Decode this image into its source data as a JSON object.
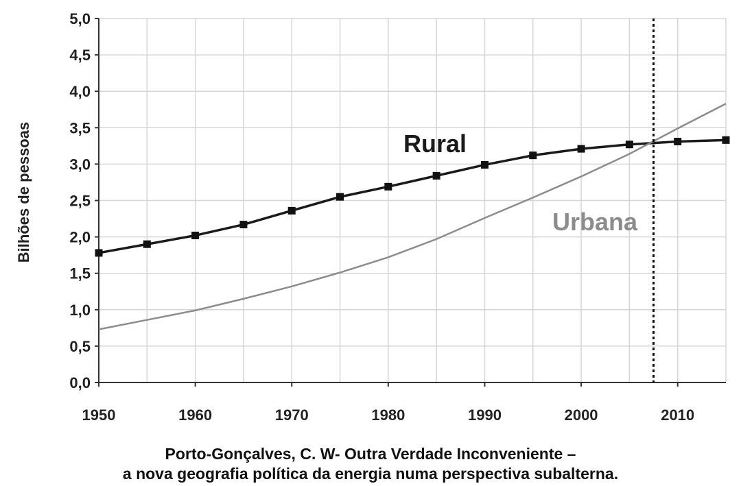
{
  "chart_data": {
    "type": "line",
    "title": "",
    "xlabel": "",
    "ylabel": "Bilhões de pessoas",
    "xlim": [
      1950,
      2015
    ],
    "ylim": [
      0,
      5
    ],
    "x_ticks": [
      1950,
      1960,
      1970,
      1980,
      1990,
      2000,
      2010
    ],
    "x_tick_labels": [
      "1950",
      "1960",
      "1970",
      "1980",
      "1990",
      "2000",
      "2010"
    ],
    "y_ticks": [
      0,
      0.5,
      1,
      1.5,
      2,
      2.5,
      3,
      3.5,
      4,
      4.5,
      5
    ],
    "y_tick_labels": [
      "0,0",
      "0,5",
      "1,0",
      "1,5",
      "2,0",
      "2,5",
      "3,0",
      "3,5",
      "4,0",
      "4,5",
      "5,0"
    ],
    "grid": true,
    "series": [
      {
        "name": "Rural",
        "color": "#1a1a1a",
        "marker": "square",
        "x": [
          1950,
          1955,
          1960,
          1965,
          1970,
          1975,
          1980,
          1985,
          1990,
          1995,
          2000,
          2005,
          2010,
          2015
        ],
        "y": [
          1.78,
          1.9,
          2.02,
          2.17,
          2.36,
          2.55,
          2.69,
          2.84,
          2.99,
          3.12,
          3.21,
          3.27,
          3.31,
          3.33
        ]
      },
      {
        "name": "Urbana",
        "color": "#8c8c8c",
        "marker": "none",
        "x": [
          1950,
          1955,
          1960,
          1965,
          1970,
          1975,
          1980,
          1985,
          1990,
          1995,
          2000,
          2005,
          2010,
          2015
        ],
        "y": [
          0.73,
          0.86,
          0.99,
          1.15,
          1.32,
          1.51,
          1.72,
          1.97,
          2.26,
          2.54,
          2.83,
          3.14,
          3.49,
          3.83
        ]
      }
    ],
    "annotations": [
      {
        "type": "vertical-dashed-line",
        "x": 2007.5
      }
    ]
  },
  "colors": {
    "grid": "#d6d6d6",
    "axis": "#333333",
    "rural": "#1a1a1a",
    "urbana": "#8c8c8c",
    "marker_line": "#111111"
  },
  "caption": {
    "line1": "Porto-Gonçalves, C. W- Outra Verdade Inconveniente –",
    "line2": "a nova geografia política da energia numa perspectiva subalterna."
  }
}
